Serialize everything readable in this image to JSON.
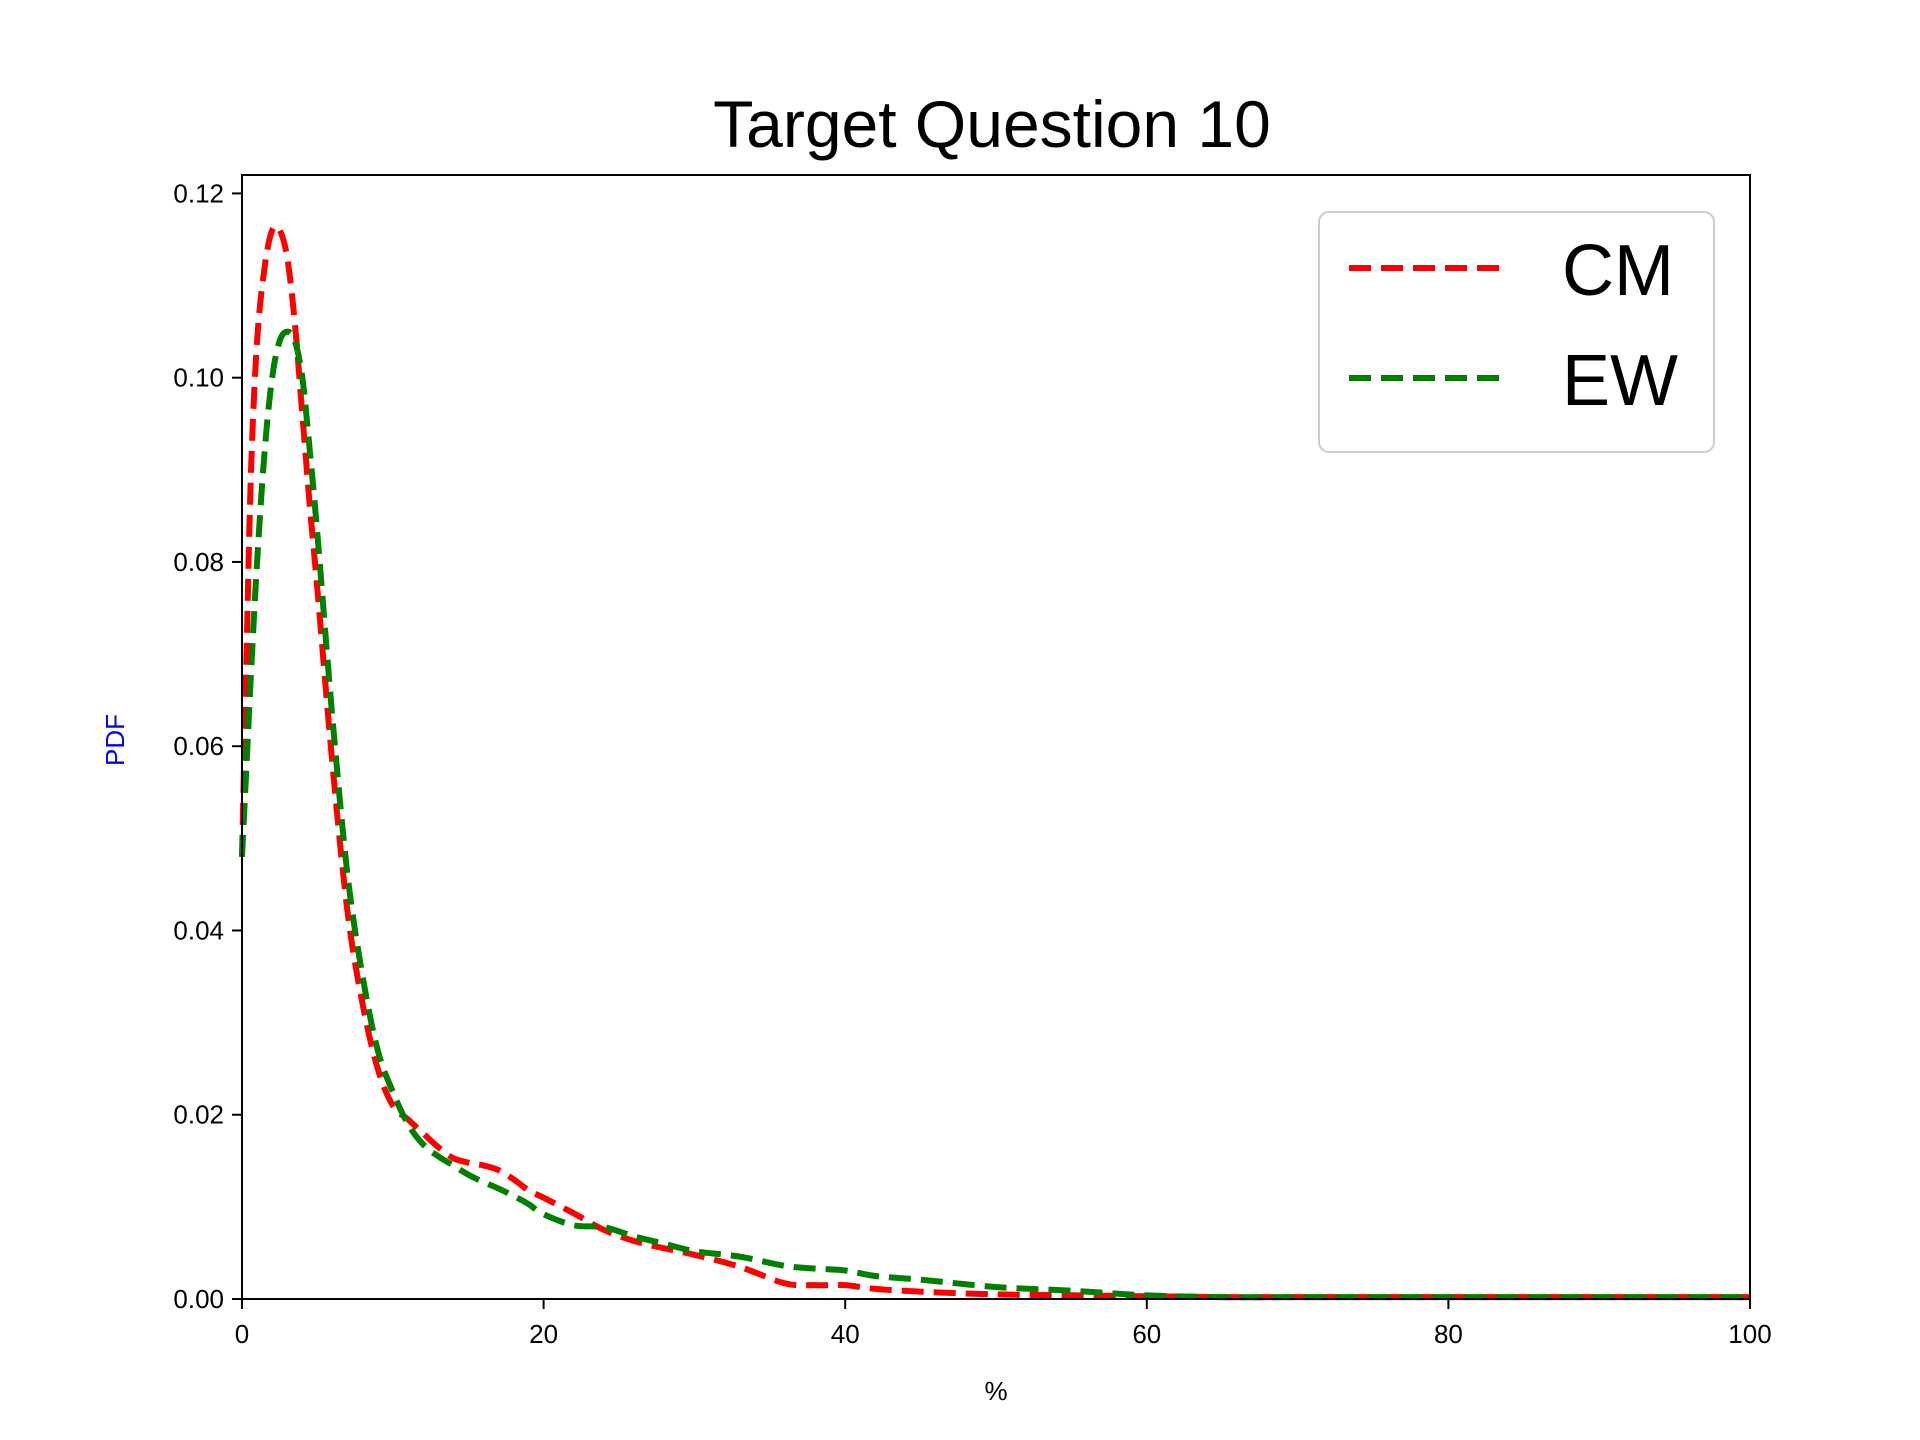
{
  "chart_data": {
    "type": "line",
    "title": "Target Question 10",
    "xlabel": "%",
    "ylabel": "PDF",
    "ylabel_color": "#0000ff",
    "xlim": [
      0,
      100
    ],
    "ylim": [
      0,
      0.122
    ],
    "x_ticks": [
      0,
      20,
      40,
      60,
      80,
      100
    ],
    "x_tick_labels": [
      "0",
      "20",
      "40",
      "60",
      "80",
      "100"
    ],
    "y_ticks": [
      0,
      0.02,
      0.04,
      0.06,
      0.08,
      0.1,
      0.12
    ],
    "y_tick_labels": [
      "0.00",
      "0.02",
      "0.04",
      "0.06",
      "0.08",
      "0.10",
      "0.12"
    ],
    "grid": false,
    "legend": {
      "position": "top-right",
      "entries": [
        "CM",
        "EW"
      ]
    },
    "series": [
      {
        "name": "CM",
        "color": "#ff0000",
        "line_style": "dashed",
        "x": [
          0,
          0.3,
          0.6,
          1.0,
          1.5,
          2.0,
          2.5,
          3.0,
          3.5,
          4.0,
          4.5,
          5.0,
          6.0,
          7.0,
          8.0,
          9.0,
          10.0,
          11.0,
          12.0,
          13.0,
          14.0,
          15.0,
          16.0,
          17.0,
          18.0,
          19.0,
          20.0,
          22.0,
          24.0,
          26.0,
          28.0,
          30.0,
          33.0,
          36.0,
          38.0,
          40.0,
          42.0,
          45.0,
          50.0,
          55.0,
          60.0,
          65.0,
          70.0,
          80.0,
          90.0,
          100.0
        ],
        "y": [
          0.048,
          0.07,
          0.09,
          0.104,
          0.112,
          0.116,
          0.116,
          0.113,
          0.106,
          0.096,
          0.086,
          0.077,
          0.058,
          0.042,
          0.032,
          0.025,
          0.021,
          0.0195,
          0.018,
          0.0165,
          0.0153,
          0.0148,
          0.0145,
          0.014,
          0.013,
          0.0118,
          0.011,
          0.0093,
          0.0075,
          0.0063,
          0.0055,
          0.0048,
          0.0035,
          0.0017,
          0.0015,
          0.0015,
          0.0011,
          0.0008,
          0.0005,
          0.0004,
          0.0003,
          0.0002,
          0.0002,
          0.0002,
          0.0002,
          0.0002
        ]
      },
      {
        "name": "EW",
        "color": "#008000",
        "line_style": "dashed",
        "x": [
          0,
          0.3,
          0.6,
          1.0,
          1.5,
          2.0,
          2.5,
          3.0,
          3.5,
          4.0,
          4.5,
          5.0,
          6.0,
          7.0,
          8.0,
          9.0,
          10.0,
          11.0,
          12.0,
          13.0,
          14.0,
          15.0,
          16.0,
          17.0,
          18.0,
          19.0,
          20.0,
          22.0,
          24.0,
          26.0,
          28.0,
          30.0,
          33.0,
          36.0,
          38.0,
          40.0,
          42.0,
          45.0,
          50.0,
          55.0,
          60.0,
          65.0,
          70.0,
          80.0,
          90.0,
          100.0
        ],
        "y": [
          0.048,
          0.058,
          0.068,
          0.08,
          0.092,
          0.1,
          0.104,
          0.105,
          0.104,
          0.1,
          0.092,
          0.083,
          0.063,
          0.046,
          0.035,
          0.027,
          0.0225,
          0.019,
          0.0168,
          0.0155,
          0.0145,
          0.0135,
          0.0127,
          0.012,
          0.0112,
          0.0103,
          0.0092,
          0.008,
          0.0078,
          0.0068,
          0.006,
          0.0052,
          0.0046,
          0.0036,
          0.0033,
          0.0031,
          0.0025,
          0.0021,
          0.0013,
          0.0009,
          0.0004,
          0.0002,
          0.0002,
          0.0002,
          0.0002,
          0.0002
        ]
      }
    ]
  }
}
